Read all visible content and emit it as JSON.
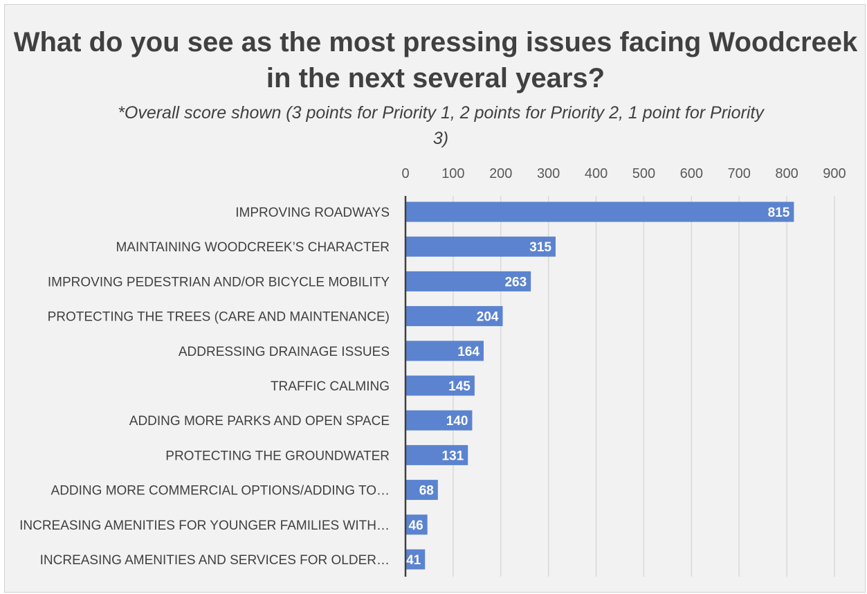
{
  "chart_data": {
    "type": "bar",
    "orientation": "horizontal",
    "title": "What do you see as the most pressing issues facing Woodcreek in the next several years?",
    "subtitle": "*Overall score shown (3 points for Priority 1, 2 points for Priority 2, 1 point for Priority 3)",
    "categories": [
      "IMPROVING ROADWAYS",
      "MAINTAINING WOODCREEK’S CHARACTER",
      "IMPROVING PEDESTRIAN AND/OR BICYCLE MOBILITY",
      "PROTECTING THE TREES (CARE AND MAINTENANCE)",
      "ADDRESSING DRAINAGE ISSUES",
      "TRAFFIC CALMING",
      "ADDING MORE PARKS AND OPEN SPACE",
      "PROTECTING THE GROUNDWATER",
      "ADDING MORE COMMERCIAL OPTIONS/ADDING TO…",
      "INCREASING AMENITIES FOR YOUNGER FAMILIES WITH…",
      "INCREASING AMENITIES AND SERVICES FOR OLDER…"
    ],
    "values": [
      815,
      315,
      263,
      204,
      164,
      145,
      140,
      131,
      68,
      46,
      41
    ],
    "xlim": [
      0,
      900
    ],
    "xticks": [
      0,
      100,
      200,
      300,
      400,
      500,
      600,
      700,
      800,
      900
    ],
    "x_axis_position": "top",
    "data_labels": true,
    "grid": true,
    "bar_color": "#5b83cf",
    "gridline_color": "#d9d9d9",
    "axis_color": "#404040",
    "legend": "none"
  }
}
